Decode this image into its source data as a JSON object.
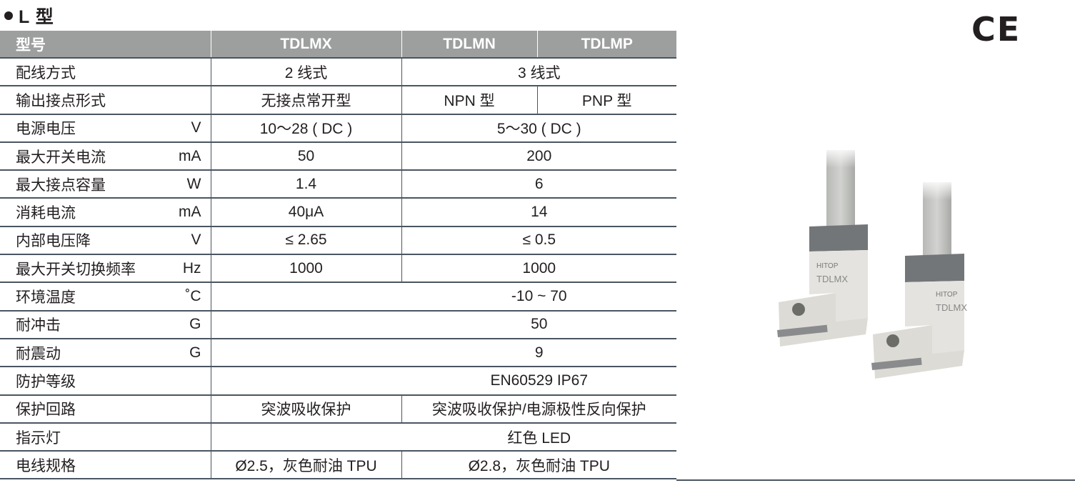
{
  "section_title": "L 型",
  "ce_mark": "CE",
  "table": {
    "header": [
      "型号",
      "TDLMX",
      "TDLMN",
      "TDLMP"
    ],
    "rows": [
      {
        "label": "配线方式",
        "unit": "",
        "cells": [
          {
            "v": "2 线式",
            "span": 1
          },
          {
            "v": "3 线式",
            "span": 2
          }
        ]
      },
      {
        "label": "输出接点形式",
        "unit": "",
        "cells": [
          {
            "v": "无接点常开型",
            "span": 1
          },
          {
            "v": "NPN 型",
            "span": 1
          },
          {
            "v": "PNP 型",
            "span": 1
          }
        ]
      },
      {
        "label": "电源电压",
        "unit": "V",
        "cells": [
          {
            "v": "10～28 ( DC )",
            "span": 1
          },
          {
            "v": "5～30 ( DC )",
            "span": 2
          }
        ]
      },
      {
        "label": "最大开关电流",
        "unit": "mA",
        "cells": [
          {
            "v": "50",
            "span": 1
          },
          {
            "v": "200",
            "span": 2
          }
        ]
      },
      {
        "label": "最大接点容量",
        "unit": "W",
        "cells": [
          {
            "v": "1.4",
            "span": 1
          },
          {
            "v": "6",
            "span": 2
          }
        ]
      },
      {
        "label": "消耗电流",
        "unit": "mA",
        "cells": [
          {
            "v": "40μA",
            "span": 1
          },
          {
            "v": "14",
            "span": 2
          }
        ]
      },
      {
        "label": "内部电压降",
        "unit": "V",
        "cells": [
          {
            "v": "≤ 2.65",
            "span": 1
          },
          {
            "v": "≤ 0.5",
            "span": 2
          }
        ]
      },
      {
        "label": "最大开关切换频率",
        "unit": "Hz",
        "cells": [
          {
            "v": "1000",
            "span": 1
          },
          {
            "v": "1000",
            "span": 2
          }
        ]
      },
      {
        "label": "环境温度",
        "unit": "˚C",
        "cells": [
          {
            "v": "-10 ~ 70",
            "span": 3
          }
        ]
      },
      {
        "label": "耐冲击",
        "unit": "G",
        "cells": [
          {
            "v": "50",
            "span": 3
          }
        ]
      },
      {
        "label": "耐震动",
        "unit": "G",
        "cells": [
          {
            "v": "9",
            "span": 3
          }
        ]
      },
      {
        "label": "防护等级",
        "unit": "",
        "cells": [
          {
            "v": "EN60529  IP67",
            "span": 3
          }
        ]
      },
      {
        "label": "保护回路",
        "unit": "",
        "cells": [
          {
            "v": "突波吸收保护",
            "span": 1
          },
          {
            "v": "突波吸收保护/电源极性反向保护",
            "span": 2
          }
        ]
      },
      {
        "label": "指示灯",
        "unit": "",
        "cells": [
          {
            "v": "红色 LED",
            "span": 3
          }
        ]
      },
      {
        "label": "电线规格",
        "unit": "",
        "cells": [
          {
            "v": "Ø2.5，灰色耐油 TPU",
            "span": 1
          },
          {
            "v": "Ø2.8，灰色耐油 TPU",
            "span": 2
          }
        ]
      }
    ]
  },
  "product_photo": {
    "logo_text": "HITOP",
    "model_text": "TDLMX"
  },
  "colors": {
    "header_bg": "#9d9e9e",
    "rule": "#4a5560",
    "text": "#231f20"
  }
}
